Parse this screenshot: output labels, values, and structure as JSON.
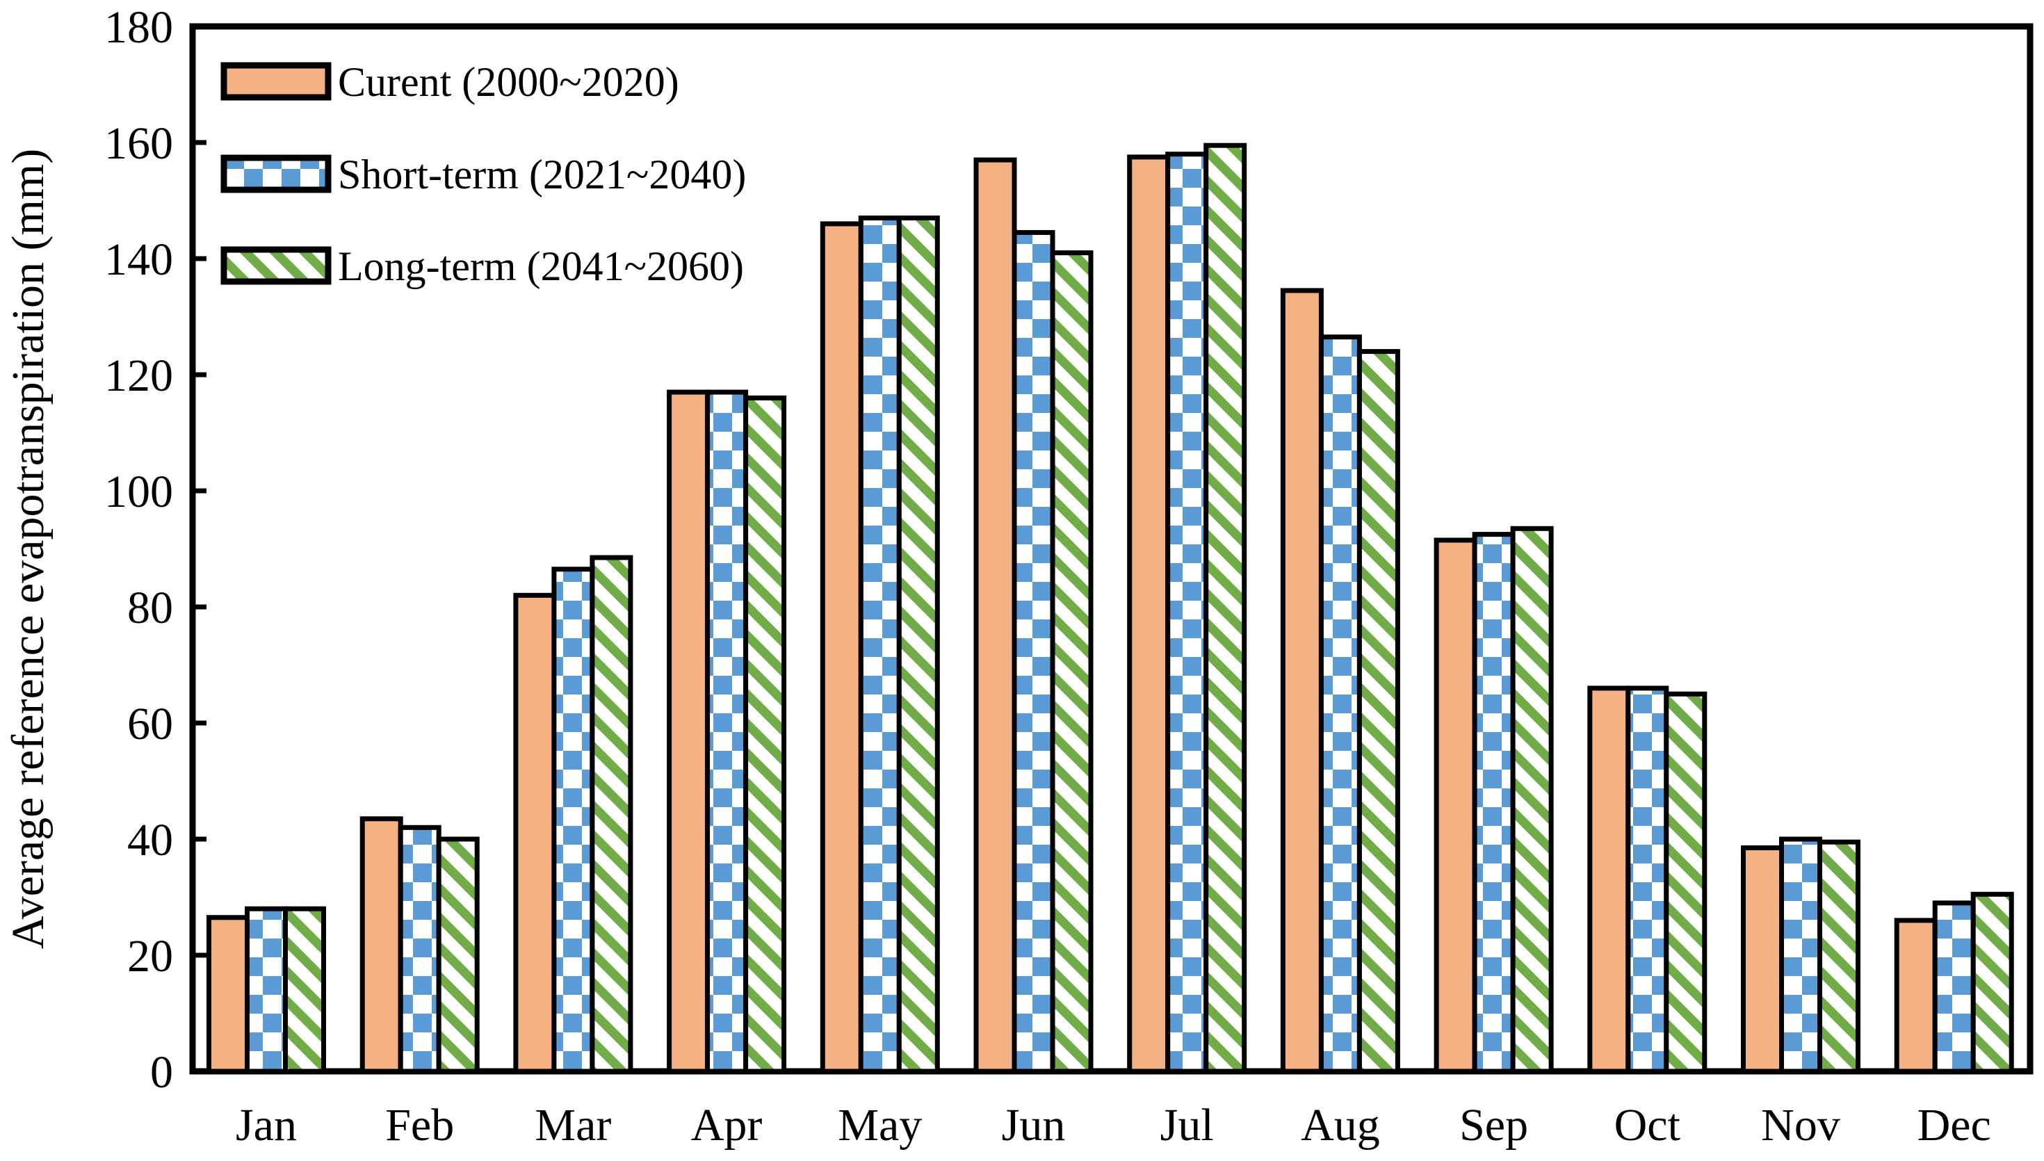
{
  "chart_data": {
    "type": "bar",
    "title": "",
    "xlabel": "",
    "ylabel": "Average reference evapotranspiration (mm)",
    "ylim": [
      0,
      180
    ],
    "ytick_step": 20,
    "yticks": [
      0,
      20,
      40,
      60,
      80,
      100,
      120,
      140,
      160,
      180
    ],
    "grid": false,
    "legend_position": "upper-left-inside",
    "categories": [
      "Jan",
      "Feb",
      "Mar",
      "Apr",
      "May",
      "Jun",
      "Jul",
      "Aug",
      "Sep",
      "Oct",
      "Nov",
      "Dec"
    ],
    "series": [
      {
        "name": "Curent (2000~2020)",
        "pattern": "solid",
        "color": "#F4B183",
        "values": [
          26.5,
          43.5,
          82,
          117,
          146,
          157,
          157.5,
          134.5,
          91.5,
          66,
          38.5,
          26
        ]
      },
      {
        "name": "Short-term (2021~2040)",
        "pattern": "checkerboard",
        "color": "#5B9BD5",
        "values": [
          28,
          42,
          86.5,
          117,
          147,
          144.5,
          158,
          126.5,
          92.5,
          66,
          40,
          29
        ]
      },
      {
        "name": "Long-term (2041~2060)",
        "pattern": "diagonal-stripe",
        "color": "#70AD47",
        "values": [
          28,
          40,
          88.5,
          116,
          147,
          141,
          159.5,
          124,
          93.5,
          65,
          39.5,
          30.5
        ]
      }
    ],
    "bar_border_color": "#000000",
    "axis_color": "#000000"
  }
}
